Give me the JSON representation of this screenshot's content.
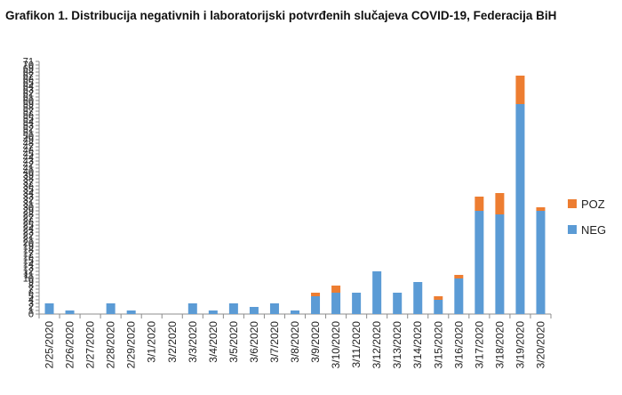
{
  "title": "Grafikon 1. Distribucija negativnih i laboratorijski potvrđenih slučajeva COVID-19, Federacija BiH",
  "colors": {
    "NEG": "#5B9BD5",
    "POZ": "#ED7D31",
    "axis": "#8c8c8c"
  },
  "chart_data": {
    "type": "bar",
    "stacked": true,
    "title": "Grafikon 1. Distribucija negativnih i laboratorijski potvrđenih slučajeva COVID-19, Federacija BiH",
    "xlabel": "",
    "ylabel": "",
    "ylim": [
      0,
      71
    ],
    "grid": false,
    "legend_position": "right",
    "categories": [
      "2/25/2020",
      "2/26/2020",
      "2/27/2020",
      "2/28/2020",
      "2/29/2020",
      "3/1/2020",
      "3/2/2020",
      "3/3/2020",
      "3/4/2020",
      "3/5/2020",
      "3/6/2020",
      "3/7/2020",
      "3/8/2020",
      "3/9/2020",
      "3/10/2020",
      "3/11/2020",
      "3/12/2020",
      "3/13/2020",
      "3/14/2020",
      "3/15/2020",
      "3/16/2020",
      "3/17/2020",
      "3/18/2020",
      "3/19/2020",
      "3/20/2020"
    ],
    "y_ticks": [
      "0",
      "1",
      "2",
      "3",
      "4",
      "5",
      "6",
      "7",
      "8",
      "9",
      "10",
      "11",
      "12",
      "13",
      "14",
      "15",
      "16",
      "17",
      "18",
      "19",
      "20",
      "21",
      "22",
      "23",
      "24",
      "25",
      "26",
      "27",
      "28",
      "29",
      "30",
      "31",
      "32",
      "33",
      "34",
      "35",
      "36",
      "37",
      "38",
      "39",
      "40",
      "41",
      "42",
      "43",
      "44",
      "45",
      "46",
      "47",
      "48",
      "49",
      "50",
      "51",
      "52",
      "53",
      "54",
      "55",
      "56",
      "57",
      "58",
      "59",
      "60",
      "61",
      "62",
      "63",
      "64",
      "65",
      "66",
      "67",
      "68",
      "69",
      "70",
      "71"
    ],
    "series": [
      {
        "name": "NEG",
        "values": [
          3,
          1,
          0,
          3,
          1,
          0,
          0,
          3,
          1,
          3,
          2,
          3,
          1,
          5,
          6,
          6,
          12,
          6,
          9,
          4,
          10,
          29,
          28,
          59,
          29
        ]
      },
      {
        "name": "POZ",
        "values": [
          0,
          0,
          0,
          0,
          0,
          0,
          0,
          0,
          0,
          0,
          0,
          0,
          0,
          1,
          2,
          0,
          0,
          0,
          0,
          1,
          1,
          4,
          6,
          8,
          1
        ]
      }
    ]
  }
}
